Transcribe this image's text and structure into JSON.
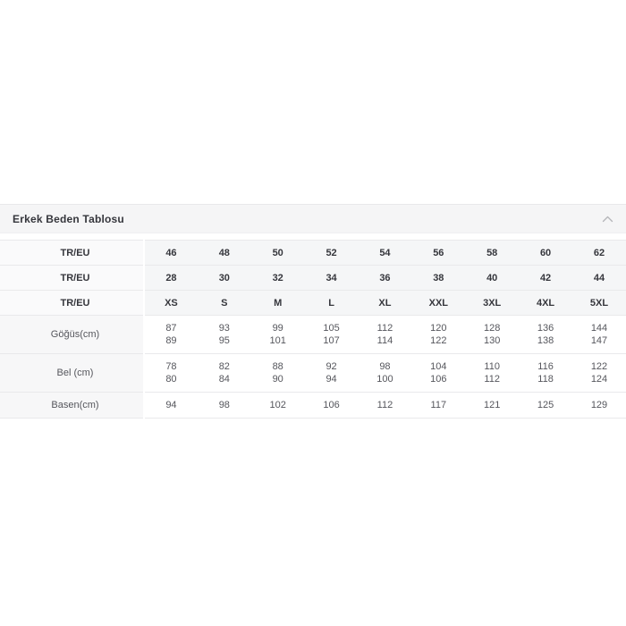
{
  "panel": {
    "title": "Erkek Beden Tablosu",
    "chevron_icon": "chevron-up",
    "colors": {
      "header_bg": "#f5f5f6",
      "row_border": "#e9e9eb",
      "header_cell_bg": "#f5f6f7",
      "label_cell_bg": "#f7f7f8",
      "bold_text": "#35363c",
      "value_text": "#55565c",
      "chevron": "#b4b5b9"
    }
  },
  "size_table": {
    "header_rows": [
      {
        "label": "TR/EU",
        "values": [
          "46",
          "48",
          "50",
          "52",
          "54",
          "56",
          "58",
          "60",
          "62"
        ]
      },
      {
        "label": "TR/EU",
        "values": [
          "28",
          "30",
          "32",
          "34",
          "36",
          "38",
          "40",
          "42",
          "44"
        ]
      },
      {
        "label": "TR/EU",
        "values": [
          "XS",
          "S",
          "M",
          "L",
          "XL",
          "XXL",
          "3XL",
          "4XL",
          "5XL"
        ]
      }
    ],
    "body_rows": [
      {
        "label": "Göğüs(cm)",
        "values": [
          [
            "87",
            "89"
          ],
          [
            "93",
            "95"
          ],
          [
            "99",
            "101"
          ],
          [
            "105",
            "107"
          ],
          [
            "112",
            "114"
          ],
          [
            "120",
            "122"
          ],
          [
            "128",
            "130"
          ],
          [
            "136",
            "138"
          ],
          [
            "144",
            "147"
          ]
        ]
      },
      {
        "label": "Bel (cm)",
        "values": [
          [
            "78",
            "80"
          ],
          [
            "82",
            "84"
          ],
          [
            "88",
            "90"
          ],
          [
            "92",
            "94"
          ],
          [
            "98",
            "100"
          ],
          [
            "104",
            "106"
          ],
          [
            "110",
            "112"
          ],
          [
            "116",
            "118"
          ],
          [
            "122",
            "124"
          ]
        ]
      },
      {
        "label": "Basen(cm)",
        "values": [
          [
            "94"
          ],
          [
            "98"
          ],
          [
            "102"
          ],
          [
            "106"
          ],
          [
            "112"
          ],
          [
            "117"
          ],
          [
            "121"
          ],
          [
            "125"
          ],
          [
            "129"
          ]
        ]
      }
    ]
  }
}
